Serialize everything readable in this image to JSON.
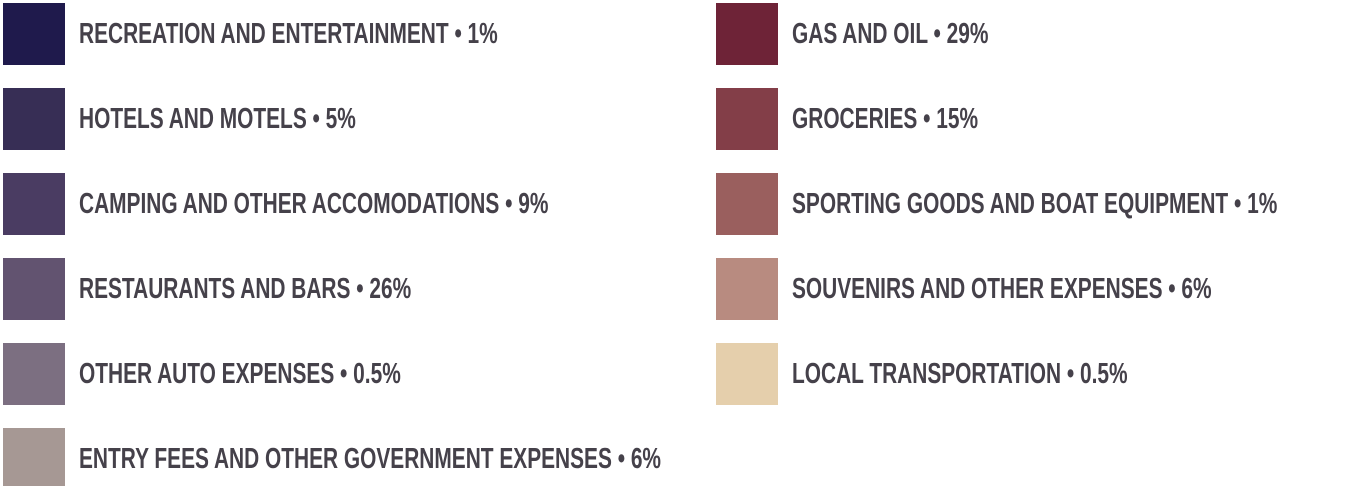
{
  "legend": {
    "columns": [
      {
        "items": [
          {
            "label": "RECREATION AND ENTERTAINMENT • 1%",
            "color": "#1f1a4c"
          },
          {
            "label": "HOTELS AND MOTELS • 5%",
            "color": "#372e55"
          },
          {
            "label": "CAMPING AND OTHER ACCOMODATIONS • 9%",
            "color": "#4a3c62"
          },
          {
            "label": "RESTAURANTS AND BARS • 26%",
            "color": "#625370"
          },
          {
            "label": "OTHER AUTO EXPENSES • 0.5%",
            "color": "#7c6f81"
          },
          {
            "label": "ENTRY FEES AND OTHER GOVERNMENT EXPENSES • 6%",
            "color": "#a69894"
          }
        ]
      },
      {
        "items": [
          {
            "label": "GAS AND OIL • 29%",
            "color": "#6e2337"
          },
          {
            "label": "GROCERIES • 15%",
            "color": "#833e48"
          },
          {
            "label": "SPORTING GOODS AND BOAT EQUIPMENT • 1%",
            "color": "#9a5f5e"
          },
          {
            "label": "SOUVENIRS AND OTHER EXPENSES • 6%",
            "color": "#b88b80"
          },
          {
            "label": "LOCAL TRANSPORTATION • 0.5%",
            "color": "#e5cfac"
          }
        ]
      }
    ]
  }
}
